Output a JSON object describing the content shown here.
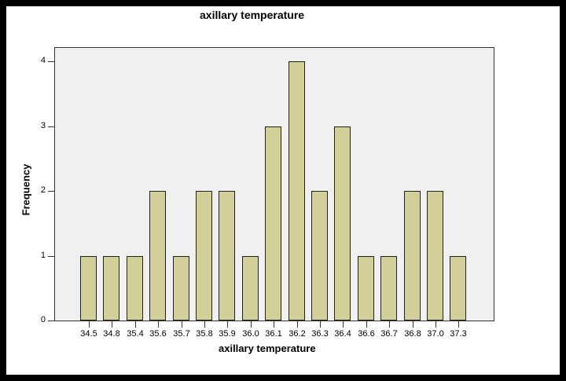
{
  "chart_data": {
    "type": "bar",
    "title": "axillary temperature",
    "xlabel": "axillary temperature",
    "ylabel": "Frequency",
    "categories": [
      "34.5",
      "34.8",
      "35.4",
      "35.6",
      "35.7",
      "35.8",
      "35.9",
      "36.0",
      "36.1",
      "36.2",
      "36.3",
      "36.4",
      "36.6",
      "36.7",
      "36.8",
      "37.0",
      "37.3"
    ],
    "values": [
      1,
      1,
      1,
      2,
      1,
      2,
      2,
      1,
      3,
      4,
      2,
      3,
      1,
      1,
      2,
      2,
      1
    ],
    "yticks": [
      0,
      1,
      2,
      3,
      4
    ],
    "ylim": [
      0,
      4.2
    ],
    "grid": false,
    "legend": null,
    "colors": {
      "bar_fill": "#d3cf99",
      "bar_edge": "#222222",
      "plot_bg": "#f0f0f0",
      "frame": "#000000"
    }
  }
}
